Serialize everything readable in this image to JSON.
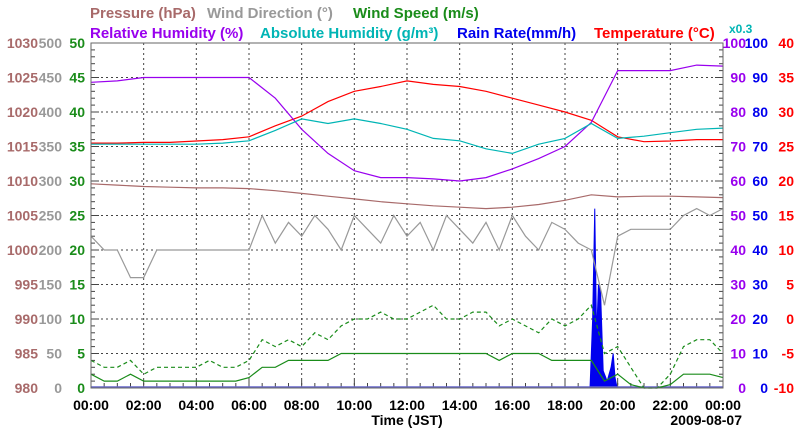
{
  "chart_data": {
    "type": "line",
    "xlabel": "Time (JST)",
    "date": "2009-08-07",
    "x_ticks": [
      "00:00",
      "02:00",
      "04:00",
      "06:00",
      "08:00",
      "10:00",
      "12:00",
      "14:00",
      "16:00",
      "18:00",
      "20:00",
      "22:00",
      "00:00"
    ],
    "xlim_hours": [
      0,
      24
    ],
    "grid": true,
    "legend": {
      "row1": [
        "Pressure (hPa)",
        "Wind Direction (°)",
        "Wind Speed (m/s)"
      ],
      "row2": [
        "Relative Humidity (%)",
        "Absolute Humidity (g/m³)",
        "Rain Rate(mm/h)",
        "Temperature (°C)"
      ],
      "abs_humidity_scale": "x0.3",
      "placement": "top"
    },
    "axes": {
      "pressure": {
        "range": [
          980,
          1030
        ],
        "ticks": [
          "1030",
          "1025",
          "1020",
          "1015",
          "1010",
          "1005",
          "1000",
          "995",
          "990",
          "985",
          "980"
        ]
      },
      "wind_direction": {
        "range": [
          0,
          500
        ],
        "ticks": [
          "500",
          "450",
          "400",
          "350",
          "300",
          "250",
          "200",
          "150",
          "100",
          "50",
          "0"
        ]
      },
      "wind_speed": {
        "range": [
          0,
          50
        ],
        "ticks": [
          "50",
          "45",
          "40",
          "35",
          "30",
          "25",
          "20",
          "15",
          "10",
          "5",
          "0"
        ]
      },
      "humidity": {
        "range": [
          0,
          100
        ],
        "ticks": [
          "100",
          "90",
          "80",
          "70",
          "60",
          "50",
          "40",
          "30",
          "20",
          "10",
          "0"
        ]
      },
      "rain": {
        "range": [
          0,
          100
        ],
        "ticks": [
          "100",
          "90",
          "80",
          "70",
          "60",
          "50",
          "40",
          "30",
          "20",
          "10",
          "0"
        ]
      },
      "temperature": {
        "range": [
          -10,
          40
        ],
        "ticks": [
          "40",
          "35",
          "30",
          "25",
          "20",
          "15",
          "10",
          "5",
          "0",
          "-5",
          "-10"
        ]
      }
    },
    "colors": {
      "pressure": "#a86a6a",
      "wind_direction": "#999999",
      "wind_speed": "#1a8c1a",
      "humidity": "#9900ee",
      "abs_humidity": "#00b5b5",
      "rain": "#0000ee",
      "temperature": "#ff0000"
    },
    "hourly_x": [
      0,
      1,
      2,
      3,
      4,
      5,
      6,
      7,
      8,
      9,
      10,
      11,
      12,
      13,
      14,
      15,
      16,
      17,
      18,
      19,
      20,
      21,
      22,
      23,
      24
    ],
    "series": [
      {
        "name": "Temperature",
        "axis": "temperature",
        "values": [
          25.5,
          25.5,
          25.6,
          25.6,
          25.8,
          26.0,
          26.4,
          28.0,
          29.4,
          31.5,
          33.0,
          33.7,
          34.5,
          34.0,
          33.7,
          33.0,
          32.0,
          31.0,
          30.0,
          28.8,
          26.4,
          25.7,
          25.8,
          26.0,
          26.0
        ]
      },
      {
        "name": "Relative Humidity",
        "axis": "humidity",
        "values": [
          88.6,
          89,
          90,
          90,
          90,
          90,
          90,
          84,
          75,
          68,
          63,
          61,
          61,
          60.6,
          60,
          61,
          63.5,
          66.5,
          70,
          77,
          92,
          92,
          92,
          93.6,
          93.3
        ]
      },
      {
        "name": "Absolute Humidity",
        "axis": "humidity",
        "scale": 0.3,
        "values": [
          21.2,
          21.2,
          21.2,
          21.2,
          21.2,
          21.3,
          21.5,
          22.4,
          23.4,
          23.0,
          23.4,
          23.0,
          22.5,
          21.7,
          21.5,
          20.8,
          20.4,
          21.2,
          21.7,
          23.0,
          21.7,
          21.9,
          22.2,
          22.5,
          22.6
        ]
      },
      {
        "name": "Pressure",
        "axis": "pressure",
        "values": [
          1009.6,
          1009.4,
          1009.2,
          1009.1,
          1009.0,
          1009.0,
          1008.9,
          1008.6,
          1008.2,
          1007.8,
          1007.4,
          1007.0,
          1006.7,
          1006.4,
          1006.2,
          1006.0,
          1006.2,
          1006.6,
          1007.2,
          1008.0,
          1007.7,
          1007.8,
          1007.8,
          1007.7,
          1007.6
        ]
      }
    ],
    "halfhour_x_step": 0.5,
    "wind_direction": [
      220,
      200,
      200,
      160,
      160,
      200,
      200,
      200,
      200,
      200,
      200,
      200,
      200,
      250,
      210,
      240,
      220,
      250,
      230,
      200,
      250,
      230,
      210,
      250,
      220,
      240,
      200,
      250,
      230,
      210,
      240,
      200,
      250,
      220,
      200,
      240,
      230,
      210,
      200,
      120,
      220,
      230,
      230,
      230,
      230,
      250,
      260,
      250,
      260
    ],
    "wind_speed": [
      2,
      1,
      1,
      2,
      1,
      1,
      1,
      1,
      1,
      1,
      1,
      1,
      1.5,
      3,
      3,
      4,
      4,
      4,
      4,
      5,
      5,
      5,
      5,
      5,
      5,
      5,
      5,
      5,
      5,
      5,
      5,
      4,
      5,
      5,
      5,
      4,
      4,
      4,
      4,
      1,
      2,
      0.5,
      0,
      0,
      0.5,
      2,
      2,
      2,
      1.5
    ],
    "wind_gust": [
      4,
      3,
      3,
      4,
      2,
      3,
      3,
      3,
      3,
      4,
      3,
      3,
      4,
      7,
      6,
      7,
      6,
      8,
      7,
      9,
      10,
      10,
      11,
      10,
      10,
      11,
      12,
      10,
      10,
      11,
      11,
      9,
      10,
      9,
      8,
      10,
      9,
      10,
      12,
      5,
      6,
      3,
      0,
      0,
      2,
      6,
      7,
      7,
      5
    ],
    "rain_rate": [
      [
        18.95,
        0
      ],
      [
        19.05,
        20
      ],
      [
        19.13,
        52
      ],
      [
        19.2,
        15
      ],
      [
        19.27,
        30
      ],
      [
        19.35,
        28
      ],
      [
        19.45,
        5
      ],
      [
        19.6,
        2
      ],
      [
        19.75,
        6
      ],
      [
        19.83,
        10
      ],
      [
        19.9,
        3
      ],
      [
        19.98,
        0
      ]
    ]
  }
}
